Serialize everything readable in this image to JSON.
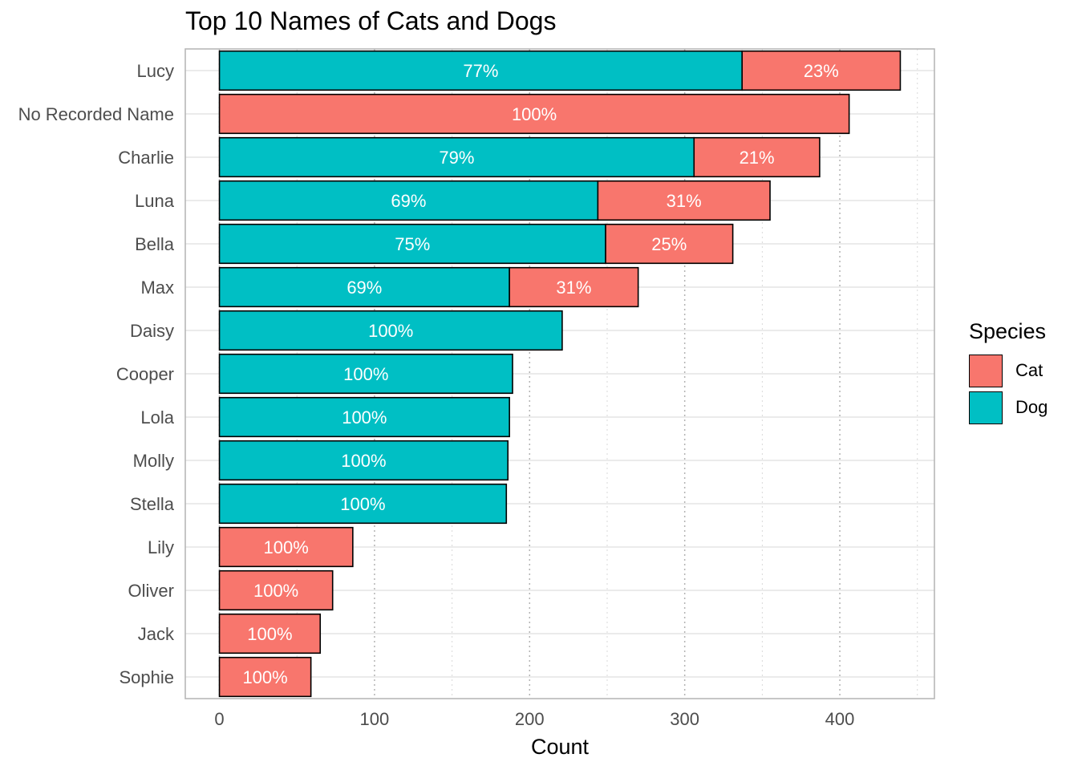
{
  "chart_data": {
    "type": "bar",
    "orientation": "horizontal",
    "stacked": true,
    "title": "Top 10 Names of Cats and Dogs",
    "xlabel": "Count",
    "ylabel": "",
    "xlim": [
      -22,
      461
    ],
    "xticks": [
      0,
      100,
      200,
      300,
      400
    ],
    "grid": true,
    "legend_position": "right",
    "legend_title": "Species",
    "categories": [
      "Lucy",
      "No Recorded Name",
      "Charlie",
      "Luna",
      "Bella",
      "Max",
      "Daisy",
      "Cooper",
      "Lola",
      "Molly",
      "Stella",
      "Lily",
      "Oliver",
      "Jack",
      "Sophie"
    ],
    "series": [
      {
        "name": "Dog",
        "color": "#00BFC4",
        "values": [
          337,
          0,
          306,
          244,
          249,
          187,
          221,
          189,
          187,
          186,
          185,
          0,
          0,
          0,
          0
        ],
        "labels": [
          "77%",
          "",
          "79%",
          "69%",
          "75%",
          "69%",
          "100%",
          "100%",
          "100%",
          "100%",
          "100%",
          "",
          "",
          "",
          ""
        ]
      },
      {
        "name": "Cat",
        "color": "#F8766D",
        "values": [
          102,
          406,
          81,
          111,
          82,
          83,
          0,
          0,
          0,
          0,
          0,
          86,
          73,
          65,
          59
        ],
        "labels": [
          "23%",
          "100%",
          "21%",
          "31%",
          "25%",
          "31%",
          "",
          "",
          "",
          "",
          "",
          "100%",
          "100%",
          "100%",
          "100%"
        ]
      }
    ],
    "legend": [
      {
        "name": "Cat",
        "color": "#F8766D"
      },
      {
        "name": "Dog",
        "color": "#00BFC4"
      }
    ]
  }
}
